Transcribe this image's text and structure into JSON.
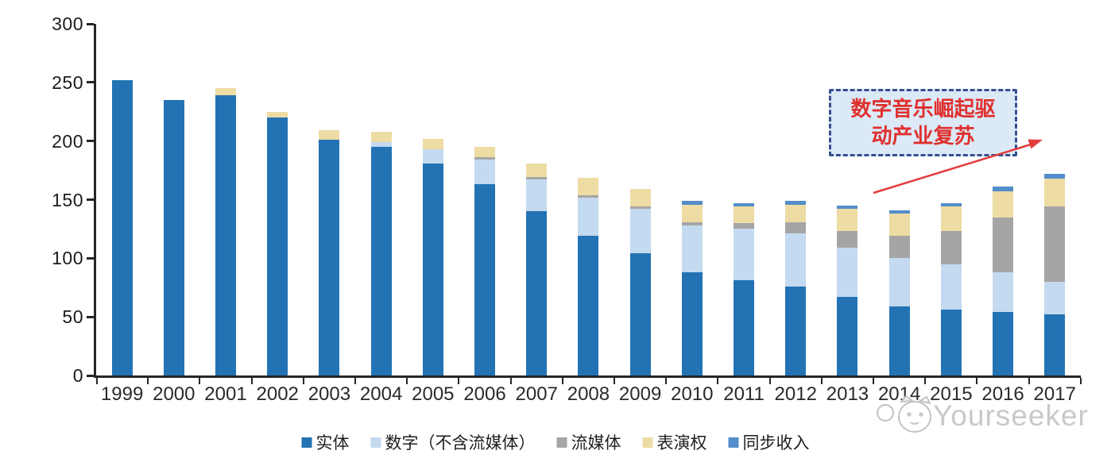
{
  "chart_data": {
    "type": "bar",
    "stacked": true,
    "title": "",
    "xlabel": "",
    "ylabel": "",
    "ylim": [
      0,
      300
    ],
    "yticks": [
      0,
      50,
      100,
      150,
      200,
      250,
      300
    ],
    "grid": false,
    "legend_position": "bottom",
    "categories": [
      "1999",
      "2000",
      "2001",
      "2002",
      "2003",
      "2004",
      "2005",
      "2006",
      "2007",
      "2008",
      "2009",
      "2010",
      "2011",
      "2012",
      "2013",
      "2014",
      "2015",
      "2016",
      "2017"
    ],
    "series": [
      {
        "name": "实体",
        "color": "#2373b4",
        "values": [
          252,
          235,
          239,
          220,
          201,
          195,
          181,
          163,
          140,
          119,
          104,
          88,
          81,
          76,
          67,
          59,
          56,
          54,
          52
        ]
      },
      {
        "name": "数字（不含流媒体）",
        "color": "#c4daf0",
        "values": [
          0,
          0,
          0,
          0,
          0,
          4,
          12,
          21,
          27,
          33,
          38,
          40,
          44,
          45,
          42,
          41,
          39,
          34,
          28
        ]
      },
      {
        "name": "流媒体",
        "color": "#a5a5a5",
        "values": [
          0,
          0,
          0,
          0,
          0,
          0,
          0,
          2,
          2,
          2,
          2,
          3,
          5,
          10,
          14,
          19,
          28,
          47,
          64
        ]
      },
      {
        "name": "表演权",
        "color": "#eddca4",
        "values": [
          0,
          0,
          6,
          5,
          8,
          9,
          9,
          9,
          12,
          15,
          15,
          15,
          14,
          15,
          19,
          19,
          21,
          22,
          24
        ]
      },
      {
        "name": "同步收入",
        "color": "#538dca",
        "values": [
          0,
          0,
          0,
          0,
          0,
          0,
          0,
          0,
          0,
          0,
          0,
          3,
          3,
          3,
          3,
          3,
          3,
          4,
          4
        ]
      }
    ]
  },
  "axes": {
    "y_tick_labels": [
      "0",
      "50",
      "100",
      "150",
      "200",
      "250",
      "300"
    ]
  },
  "annotation": {
    "line1": "数字音乐崛起驱",
    "line2": "动产业复苏",
    "text": "数字音乐崛起驱动产业复苏",
    "fill_color": "#dce9f7",
    "border_color": "#33508e",
    "text_color": "#e0302e",
    "arrow_color": "#e43c3c"
  },
  "watermark": {
    "text": "Yourseeker",
    "logo": "mascot-logo",
    "color": "#c9c9c9"
  }
}
